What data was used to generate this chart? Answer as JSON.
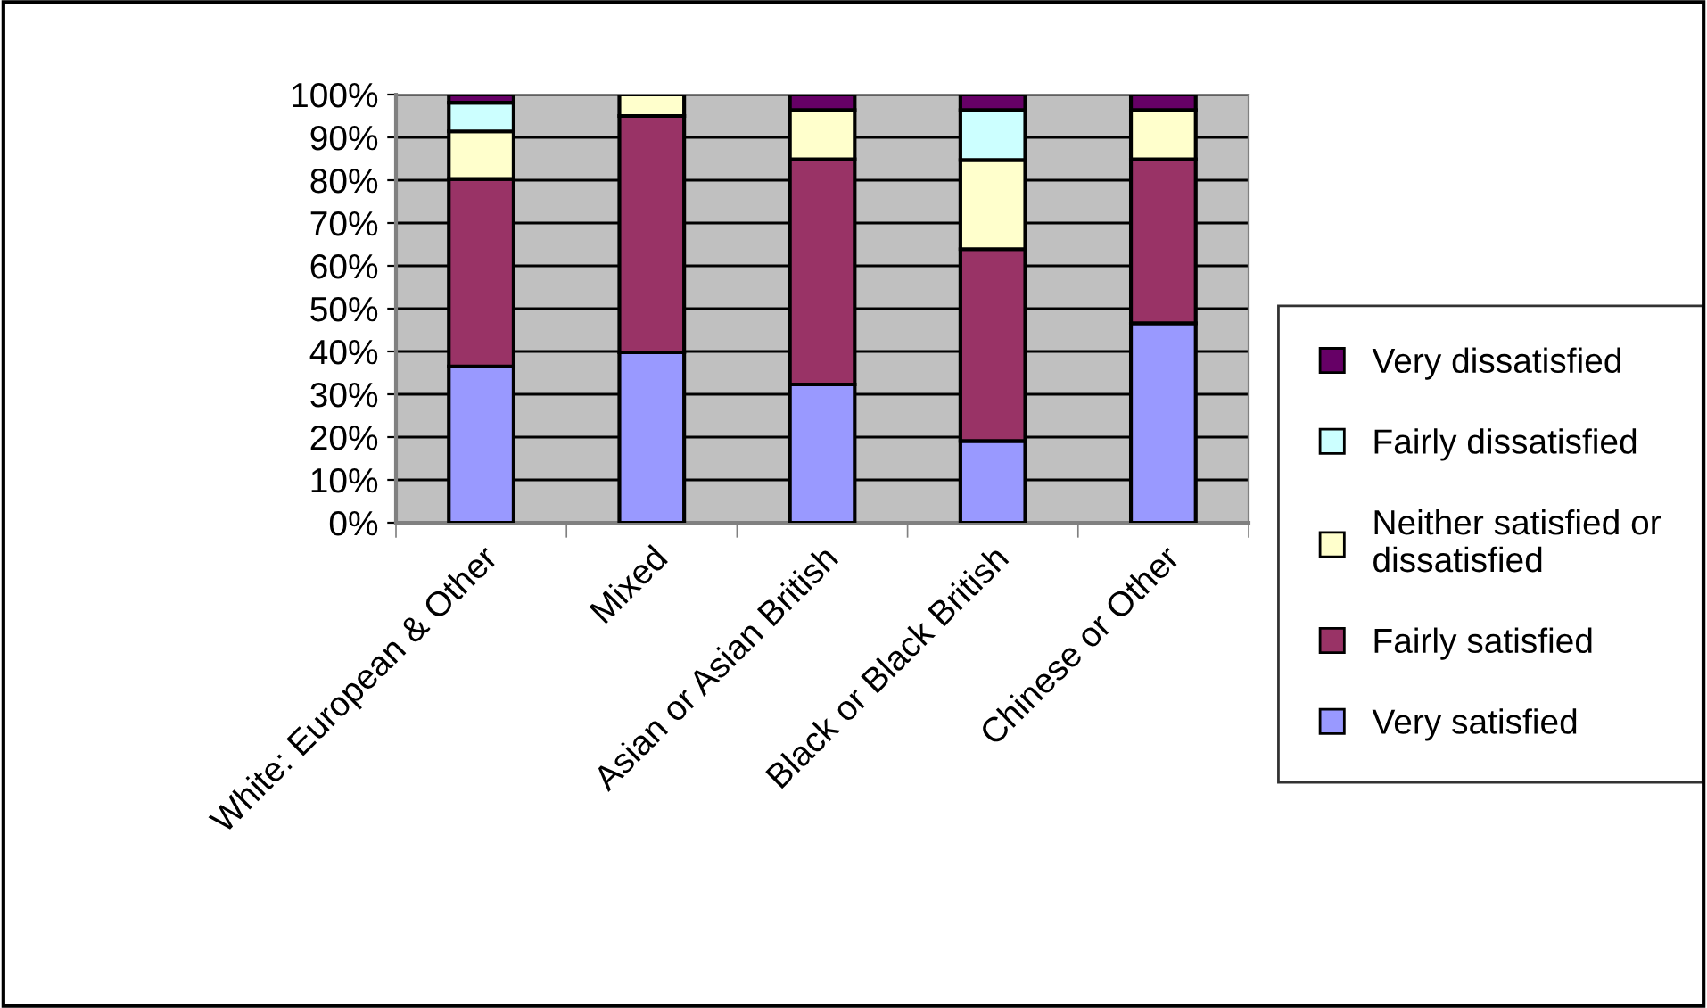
{
  "chart_data": {
    "type": "bar",
    "stacked": true,
    "categories": [
      "White: European & Other",
      "Mixed",
      "Asian or Asian British",
      "Black or Black British",
      "Chinese or Other"
    ],
    "series": [
      {
        "name": "Very satisfied",
        "color": "#9999ff",
        "values": [
          36.5,
          39.8,
          32.3,
          19.1,
          46.6
        ]
      },
      {
        "name": "Fairly satisfied",
        "color": "#993366",
        "values": [
          43.8,
          55.2,
          52.6,
          44.8,
          38.3
        ]
      },
      {
        "name": "Neither satisfied or dissatisfied",
        "color": "#ffffcc",
        "values": [
          11.1,
          5.0,
          11.5,
          20.8,
          11.5
        ]
      },
      {
        "name": "Fairly dissatisfied",
        "color": "#ccffff",
        "values": [
          6.7,
          null,
          null,
          11.7,
          null
        ]
      },
      {
        "name": "Very dissatisfied",
        "color": "#660066",
        "values": [
          1.9,
          null,
          3.6,
          3.6,
          3.6
        ]
      }
    ],
    "ylim": [
      0,
      100
    ],
    "yticks": [
      {
        "value": 0,
        "label": "0%"
      },
      {
        "value": 10,
        "label": "10%"
      },
      {
        "value": 20,
        "label": "20%"
      },
      {
        "value": 30,
        "label": "30%"
      },
      {
        "value": 40,
        "label": "40%"
      },
      {
        "value": 50,
        "label": "50%"
      },
      {
        "value": 60,
        "label": "60%"
      },
      {
        "value": 70,
        "label": "70%"
      },
      {
        "value": 80,
        "label": "80%"
      },
      {
        "value": 90,
        "label": "90%"
      },
      {
        "value": 100,
        "label": "100%"
      }
    ],
    "grid": "y",
    "legend": "right"
  }
}
